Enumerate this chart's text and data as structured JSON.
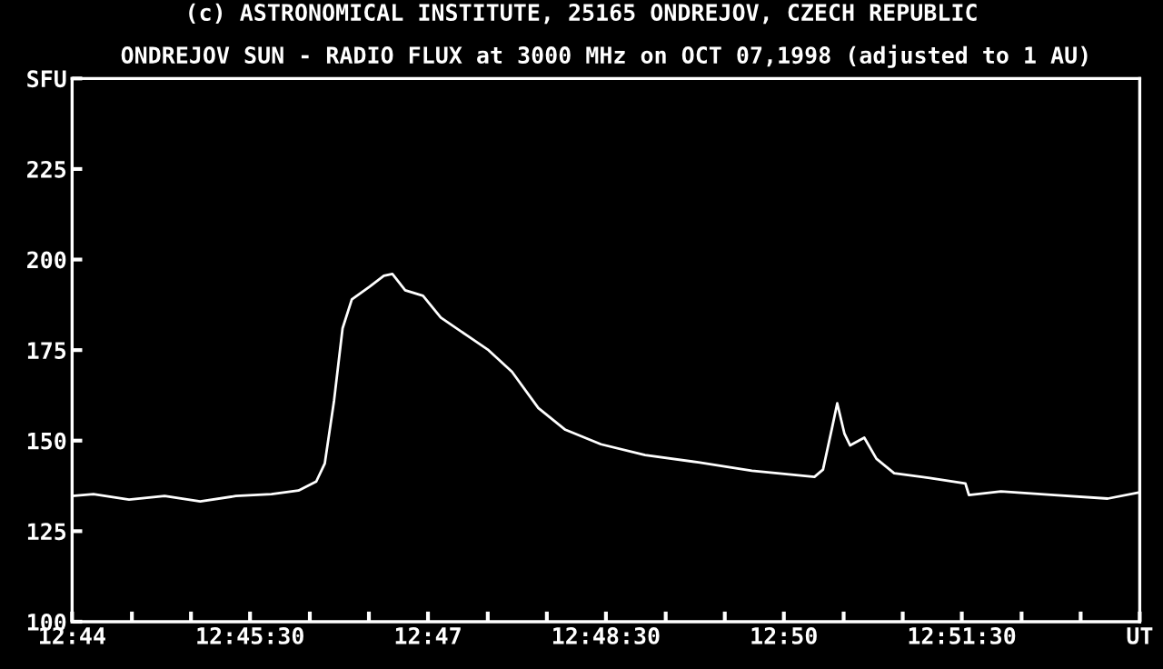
{
  "chart_data": {
    "type": "line",
    "title": "ONDREJOV SUN - RADIO FLUX at 3000 MHz on OCT 07,1998 (adjusted to 1 AU)",
    "annotations": [
      "(c) ASTRONOMICAL INSTITUTE, 25165 ONDREJOV, CZECH REPUBLIC"
    ],
    "x": [
      12.7333,
      12.7363,
      12.7413,
      12.7463,
      12.7513,
      12.7563,
      12.7613,
      12.7651,
      12.7676,
      12.7688,
      12.7701,
      12.7713,
      12.7726,
      12.7751,
      12.7771,
      12.7783,
      12.7801,
      12.7826,
      12.7851,
      12.7888,
      12.7918,
      12.7951,
      12.7988,
      12.8026,
      12.8076,
      12.8138,
      12.8213,
      12.8288,
      12.8376,
      12.8388,
      12.8401,
      12.8408,
      12.8418,
      12.8426,
      12.8446,
      12.8463,
      12.8488,
      12.8538,
      12.8588,
      12.8593,
      12.8638,
      12.8713,
      12.8788,
      12.8833
    ],
    "series": [
      {
        "color": "#ffffff",
        "values": [
          134.7,
          135.2,
          133.7,
          134.7,
          133.2,
          134.7,
          135.2,
          136.2,
          138.7,
          143.7,
          161,
          181,
          189,
          192.5,
          195.5,
          196,
          191.5,
          190,
          184,
          179,
          175,
          169,
          159,
          153,
          149,
          146,
          144,
          141.7,
          140,
          142,
          153.8,
          160.3,
          152,
          148.7,
          150.8,
          145,
          141,
          139.7,
          138.2,
          135,
          136,
          135,
          134,
          135.7
        ]
      }
    ],
    "xlim": [
      12.7333,
      12.8833
    ],
    "xticks": [
      {
        "value": 12.7333,
        "label": "12:44"
      },
      {
        "value": 12.7417,
        "label": null
      },
      {
        "value": 12.75,
        "label": null
      },
      {
        "value": 12.7583,
        "label": "12:45:30"
      },
      {
        "value": 12.7667,
        "label": null
      },
      {
        "value": 12.775,
        "label": null
      },
      {
        "value": 12.7833,
        "label": "12:47"
      },
      {
        "value": 12.7917,
        "label": null
      },
      {
        "value": 12.8,
        "label": null
      },
      {
        "value": 12.8083,
        "label": "12:48:30"
      },
      {
        "value": 12.8167,
        "label": null
      },
      {
        "value": 12.825,
        "label": null
      },
      {
        "value": 12.8333,
        "label": "12:50"
      },
      {
        "value": 12.8417,
        "label": null
      },
      {
        "value": 12.85,
        "label": null
      },
      {
        "value": 12.8583,
        "label": "12:51:30"
      },
      {
        "value": 12.8667,
        "label": null
      },
      {
        "value": 12.875,
        "label": null
      },
      {
        "value": 12.8833,
        "label": "UT"
      }
    ],
    "ylim": [
      100,
      250
    ],
    "yticks": [
      100,
      125,
      150,
      175,
      200,
      225,
      {
        "value": 250,
        "label": "SFU"
      }
    ],
    "grid": false,
    "legend": false,
    "marker": "none",
    "line_style": "solid"
  }
}
